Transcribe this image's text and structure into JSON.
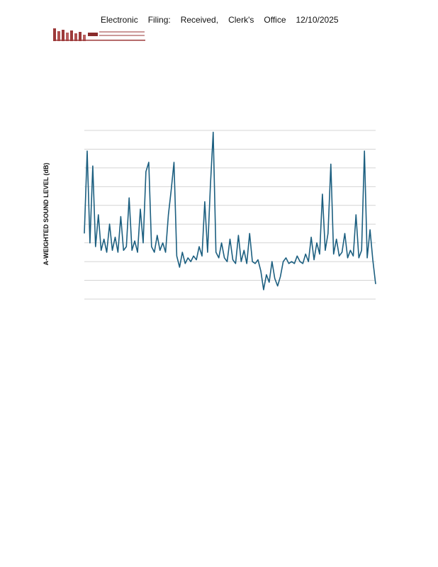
{
  "header": {
    "filing_stamp": [
      "Electronic",
      "Filing:",
      "Received,",
      "Clerk's",
      "Office",
      "12/10/2025"
    ]
  },
  "chart_data": {
    "type": "line",
    "ylabel": "A-WEIGHTED SOUND LEVEL (dB)",
    "color": "#1c5f80",
    "ylim": [
      0,
      9
    ],
    "gridlines": [
      0,
      1,
      2,
      3,
      4,
      5,
      6,
      7,
      8,
      9
    ],
    "grid": true,
    "values": [
      3.5,
      7.9,
      3.0,
      7.1,
      2.8,
      4.5,
      2.6,
      3.2,
      2.5,
      4.0,
      2.6,
      3.3,
      2.5,
      4.4,
      2.6,
      2.8,
      5.4,
      2.6,
      3.1,
      2.5,
      4.8,
      3.0,
      6.8,
      7.3,
      2.8,
      2.5,
      3.4,
      2.6,
      3.0,
      2.5,
      4.5,
      5.8,
      7.3,
      2.3,
      1.7,
      2.5,
      1.9,
      2.2,
      2.0,
      2.3,
      2.1,
      2.8,
      2.3,
      5.2,
      2.5,
      6.0,
      8.9,
      2.5,
      2.2,
      3.0,
      2.2,
      2.0,
      3.2,
      2.1,
      1.9,
      3.4,
      2.0,
      2.6,
      1.9,
      3.5,
      2.0,
      1.9,
      2.1,
      1.5,
      0.5,
      1.3,
      0.9,
      2.0,
      1.1,
      0.7,
      1.2,
      2.0,
      2.2,
      1.9,
      2.0,
      1.9,
      2.3,
      2.0,
      1.9,
      2.4,
      2.0,
      3.3,
      2.1,
      3.0,
      2.4,
      5.6,
      2.6,
      3.5,
      7.2,
      2.4,
      3.2,
      2.3,
      2.5,
      3.5,
      2.2,
      2.6,
      2.3,
      4.5,
      2.2,
      2.6,
      7.9,
      2.2,
      3.7,
      2.1,
      0.8
    ]
  }
}
